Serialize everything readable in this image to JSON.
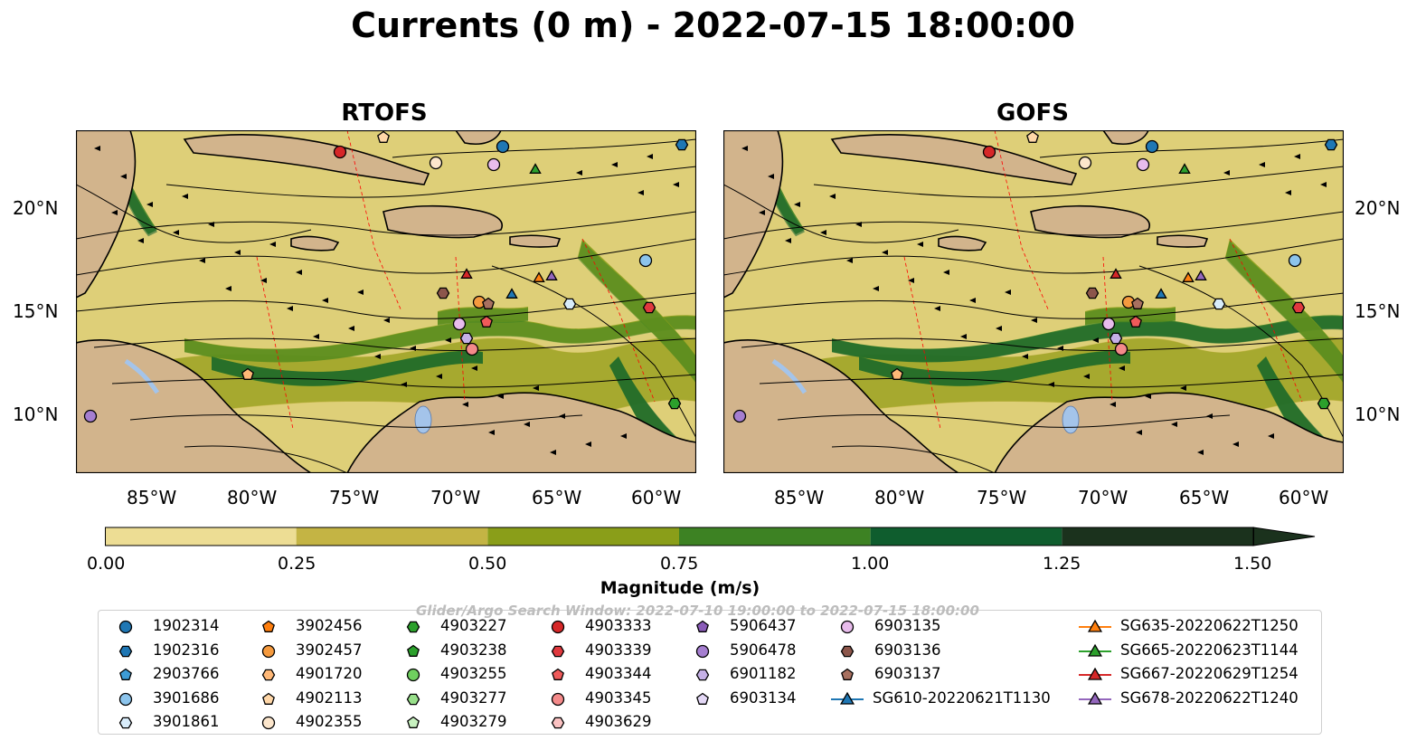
{
  "title": "Currents (0 m) - 2022-07-15 18:00:00",
  "panels": [
    {
      "title": "RTOFS"
    },
    {
      "title": "GOFS"
    }
  ],
  "axes": {
    "lon_ticks": [
      "85°W",
      "80°W",
      "75°W",
      "70°W",
      "65°W",
      "60°W"
    ],
    "lat_ticks": [
      "20°N",
      "15°N",
      "10°N"
    ]
  },
  "colors": {
    "land": "#d2b48c",
    "water_lake": "#a4c4ea",
    "streamline": "#000000",
    "eez": "#ff0000",
    "magnitude_bins": [
      "#eddd94",
      "#c4b444",
      "#8a9e19",
      "#3d8223",
      "#0f5d2e",
      "#1b321d"
    ]
  },
  "colorbar": {
    "label": "Magnitude (m/s)",
    "ticks": [
      "0.00",
      "0.25",
      "0.50",
      "0.75",
      "1.00",
      "1.25",
      "1.50"
    ],
    "values": [
      0,
      0.25,
      0.5,
      0.75,
      1.0,
      1.25,
      1.5
    ],
    "extend": "max"
  },
  "search_window": "Glider/Argo Search Window: 2022-07-10 19:00:00 to 2022-07-15 18:00:00",
  "legend": {
    "items": [
      {
        "label": "1902314",
        "marker": "circle",
        "color": "#1f77b4"
      },
      {
        "label": "1902316",
        "marker": "hexagon",
        "color": "#1f77b4"
      },
      {
        "label": "2903766",
        "marker": "pentagon",
        "color": "#3d9cd6"
      },
      {
        "label": "3901686",
        "marker": "circle",
        "color": "#8cc4ec"
      },
      {
        "label": "3901861",
        "marker": "hexagon",
        "color": "#d8ecfa"
      },
      {
        "label": "3902456",
        "marker": "pentagon",
        "color": "#ff7f0e"
      },
      {
        "label": "3902457",
        "marker": "circle",
        "color": "#f59a3e"
      },
      {
        "label": "4901720",
        "marker": "hexagon",
        "color": "#ffb877"
      },
      {
        "label": "4902113",
        "marker": "pentagon",
        "color": "#ffd7a8"
      },
      {
        "label": "4902355",
        "marker": "circle",
        "color": "#fce6cc"
      },
      {
        "label": "4903227",
        "marker": "hexagon",
        "color": "#2ca02c"
      },
      {
        "label": "4903238",
        "marker": "pentagon",
        "color": "#2ca02c"
      },
      {
        "label": "4903255",
        "marker": "circle",
        "color": "#6fcf5f"
      },
      {
        "label": "4903277",
        "marker": "hexagon",
        "color": "#98df8a"
      },
      {
        "label": "4903279",
        "marker": "pentagon",
        "color": "#c8f2c0"
      },
      {
        "label": "4903333",
        "marker": "circle",
        "color": "#d62728"
      },
      {
        "label": "4903339",
        "marker": "hexagon",
        "color": "#e0393e"
      },
      {
        "label": "4903344",
        "marker": "pentagon",
        "color": "#ef5a5a"
      },
      {
        "label": "4903345",
        "marker": "circle",
        "color": "#f48a8a"
      },
      {
        "label": "4903629",
        "marker": "hexagon",
        "color": "#fbc2c2"
      },
      {
        "label": "5906437",
        "marker": "pentagon",
        "color": "#8a5cb8"
      },
      {
        "label": "5906478",
        "marker": "circle",
        "color": "#a57ed0"
      },
      {
        "label": "6901182",
        "marker": "hexagon",
        "color": "#c5b0e6"
      },
      {
        "label": "6903134",
        "marker": "pentagon",
        "color": "#e4d8f6"
      },
      {
        "label": "6903135",
        "marker": "circle",
        "color": "#e8bcec"
      },
      {
        "label": "6903136",
        "marker": "hexagon",
        "color": "#8c564b"
      },
      {
        "label": "6903137",
        "marker": "pentagon",
        "color": "#a8705f"
      },
      {
        "label": "SG610-20220621T1130",
        "marker": "triangle-line",
        "color": "#1f77b4"
      },
      {
        "label": "SG635-20220622T1250",
        "marker": "triangle-line",
        "color": "#ff7f0e"
      },
      {
        "label": "SG665-20220623T1144",
        "marker": "triangle-line",
        "color": "#2ca02c"
      },
      {
        "label": "SG667-20220629T1254",
        "marker": "triangle-line",
        "color": "#d62728"
      },
      {
        "label": "SG678-20220622T1240",
        "marker": "triangle-line",
        "color": "#9467bd"
      }
    ]
  }
}
